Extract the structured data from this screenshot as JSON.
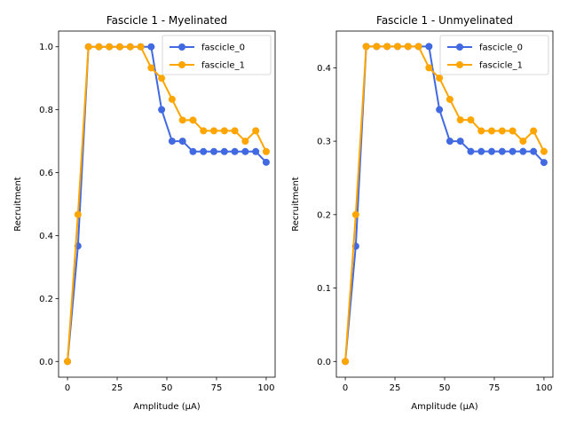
{
  "chart_data": [
    {
      "type": "line",
      "title": "Fascicle 1 - Myelinated",
      "xlabel": "Amplitude (µA)",
      "ylabel": "Recruitment",
      "xlim": [
        -4.5,
        104.5
      ],
      "ylim": [
        -0.05,
        1.05
      ],
      "xticks": [
        0,
        25,
        50,
        75,
        100
      ],
      "yticks": [
        0.0,
        0.2,
        0.4,
        0.6,
        0.8,
        1.0
      ],
      "ytick_labels": [
        "0.0",
        "0.2",
        "0.4",
        "0.6",
        "0.8",
        "1.0"
      ],
      "grid": false,
      "legend_position": "top-right",
      "x": [
        0,
        5.26,
        10.53,
        15.79,
        21.05,
        26.32,
        31.58,
        36.84,
        42.11,
        47.37,
        52.63,
        57.89,
        63.16,
        68.42,
        73.68,
        78.95,
        84.21,
        89.47,
        94.74,
        100
      ],
      "series": [
        {
          "name": "fascicle_0",
          "color": "#4169e1",
          "values": [
            0.0,
            0.367,
            1.0,
            1.0,
            1.0,
            1.0,
            1.0,
            1.0,
            1.0,
            0.8,
            0.7,
            0.7,
            0.667,
            0.667,
            0.667,
            0.667,
            0.667,
            0.667,
            0.667,
            0.633
          ]
        },
        {
          "name": "fascicle_1",
          "color": "#ffa500",
          "values": [
            0.0,
            0.467,
            1.0,
            1.0,
            1.0,
            1.0,
            1.0,
            1.0,
            0.933,
            0.9,
            0.833,
            0.767,
            0.767,
            0.733,
            0.733,
            0.733,
            0.733,
            0.7,
            0.733,
            0.667
          ]
        }
      ]
    },
    {
      "type": "line",
      "title": "Fascicle 1 - Unmyelinated",
      "xlabel": "Amplitude (µA)",
      "ylabel": "Recruitment",
      "xlim": [
        -4.5,
        104.5
      ],
      "ylim": [
        -0.0214,
        0.45
      ],
      "xticks": [
        0,
        25,
        50,
        75,
        100
      ],
      "yticks": [
        0.0,
        0.1,
        0.2,
        0.3,
        0.4
      ],
      "ytick_labels": [
        "0.0",
        "0.1",
        "0.2",
        "0.3",
        "0.4"
      ],
      "grid": false,
      "legend_position": "top-right",
      "x": [
        0,
        5.26,
        10.53,
        15.79,
        21.05,
        26.32,
        31.58,
        36.84,
        42.11,
        47.37,
        52.63,
        57.89,
        63.16,
        68.42,
        73.68,
        78.95,
        84.21,
        89.47,
        94.74,
        100
      ],
      "series": [
        {
          "name": "fascicle_0",
          "color": "#4169e1",
          "values": [
            0.0,
            0.157,
            0.429,
            0.429,
            0.429,
            0.429,
            0.429,
            0.429,
            0.429,
            0.343,
            0.3,
            0.3,
            0.286,
            0.286,
            0.286,
            0.286,
            0.286,
            0.286,
            0.286,
            0.271
          ]
        },
        {
          "name": "fascicle_1",
          "color": "#ffa500",
          "values": [
            0.0,
            0.2,
            0.429,
            0.429,
            0.429,
            0.429,
            0.429,
            0.429,
            0.4,
            0.386,
            0.357,
            0.329,
            0.329,
            0.314,
            0.314,
            0.314,
            0.314,
            0.3,
            0.314,
            0.286
          ]
        }
      ]
    }
  ]
}
